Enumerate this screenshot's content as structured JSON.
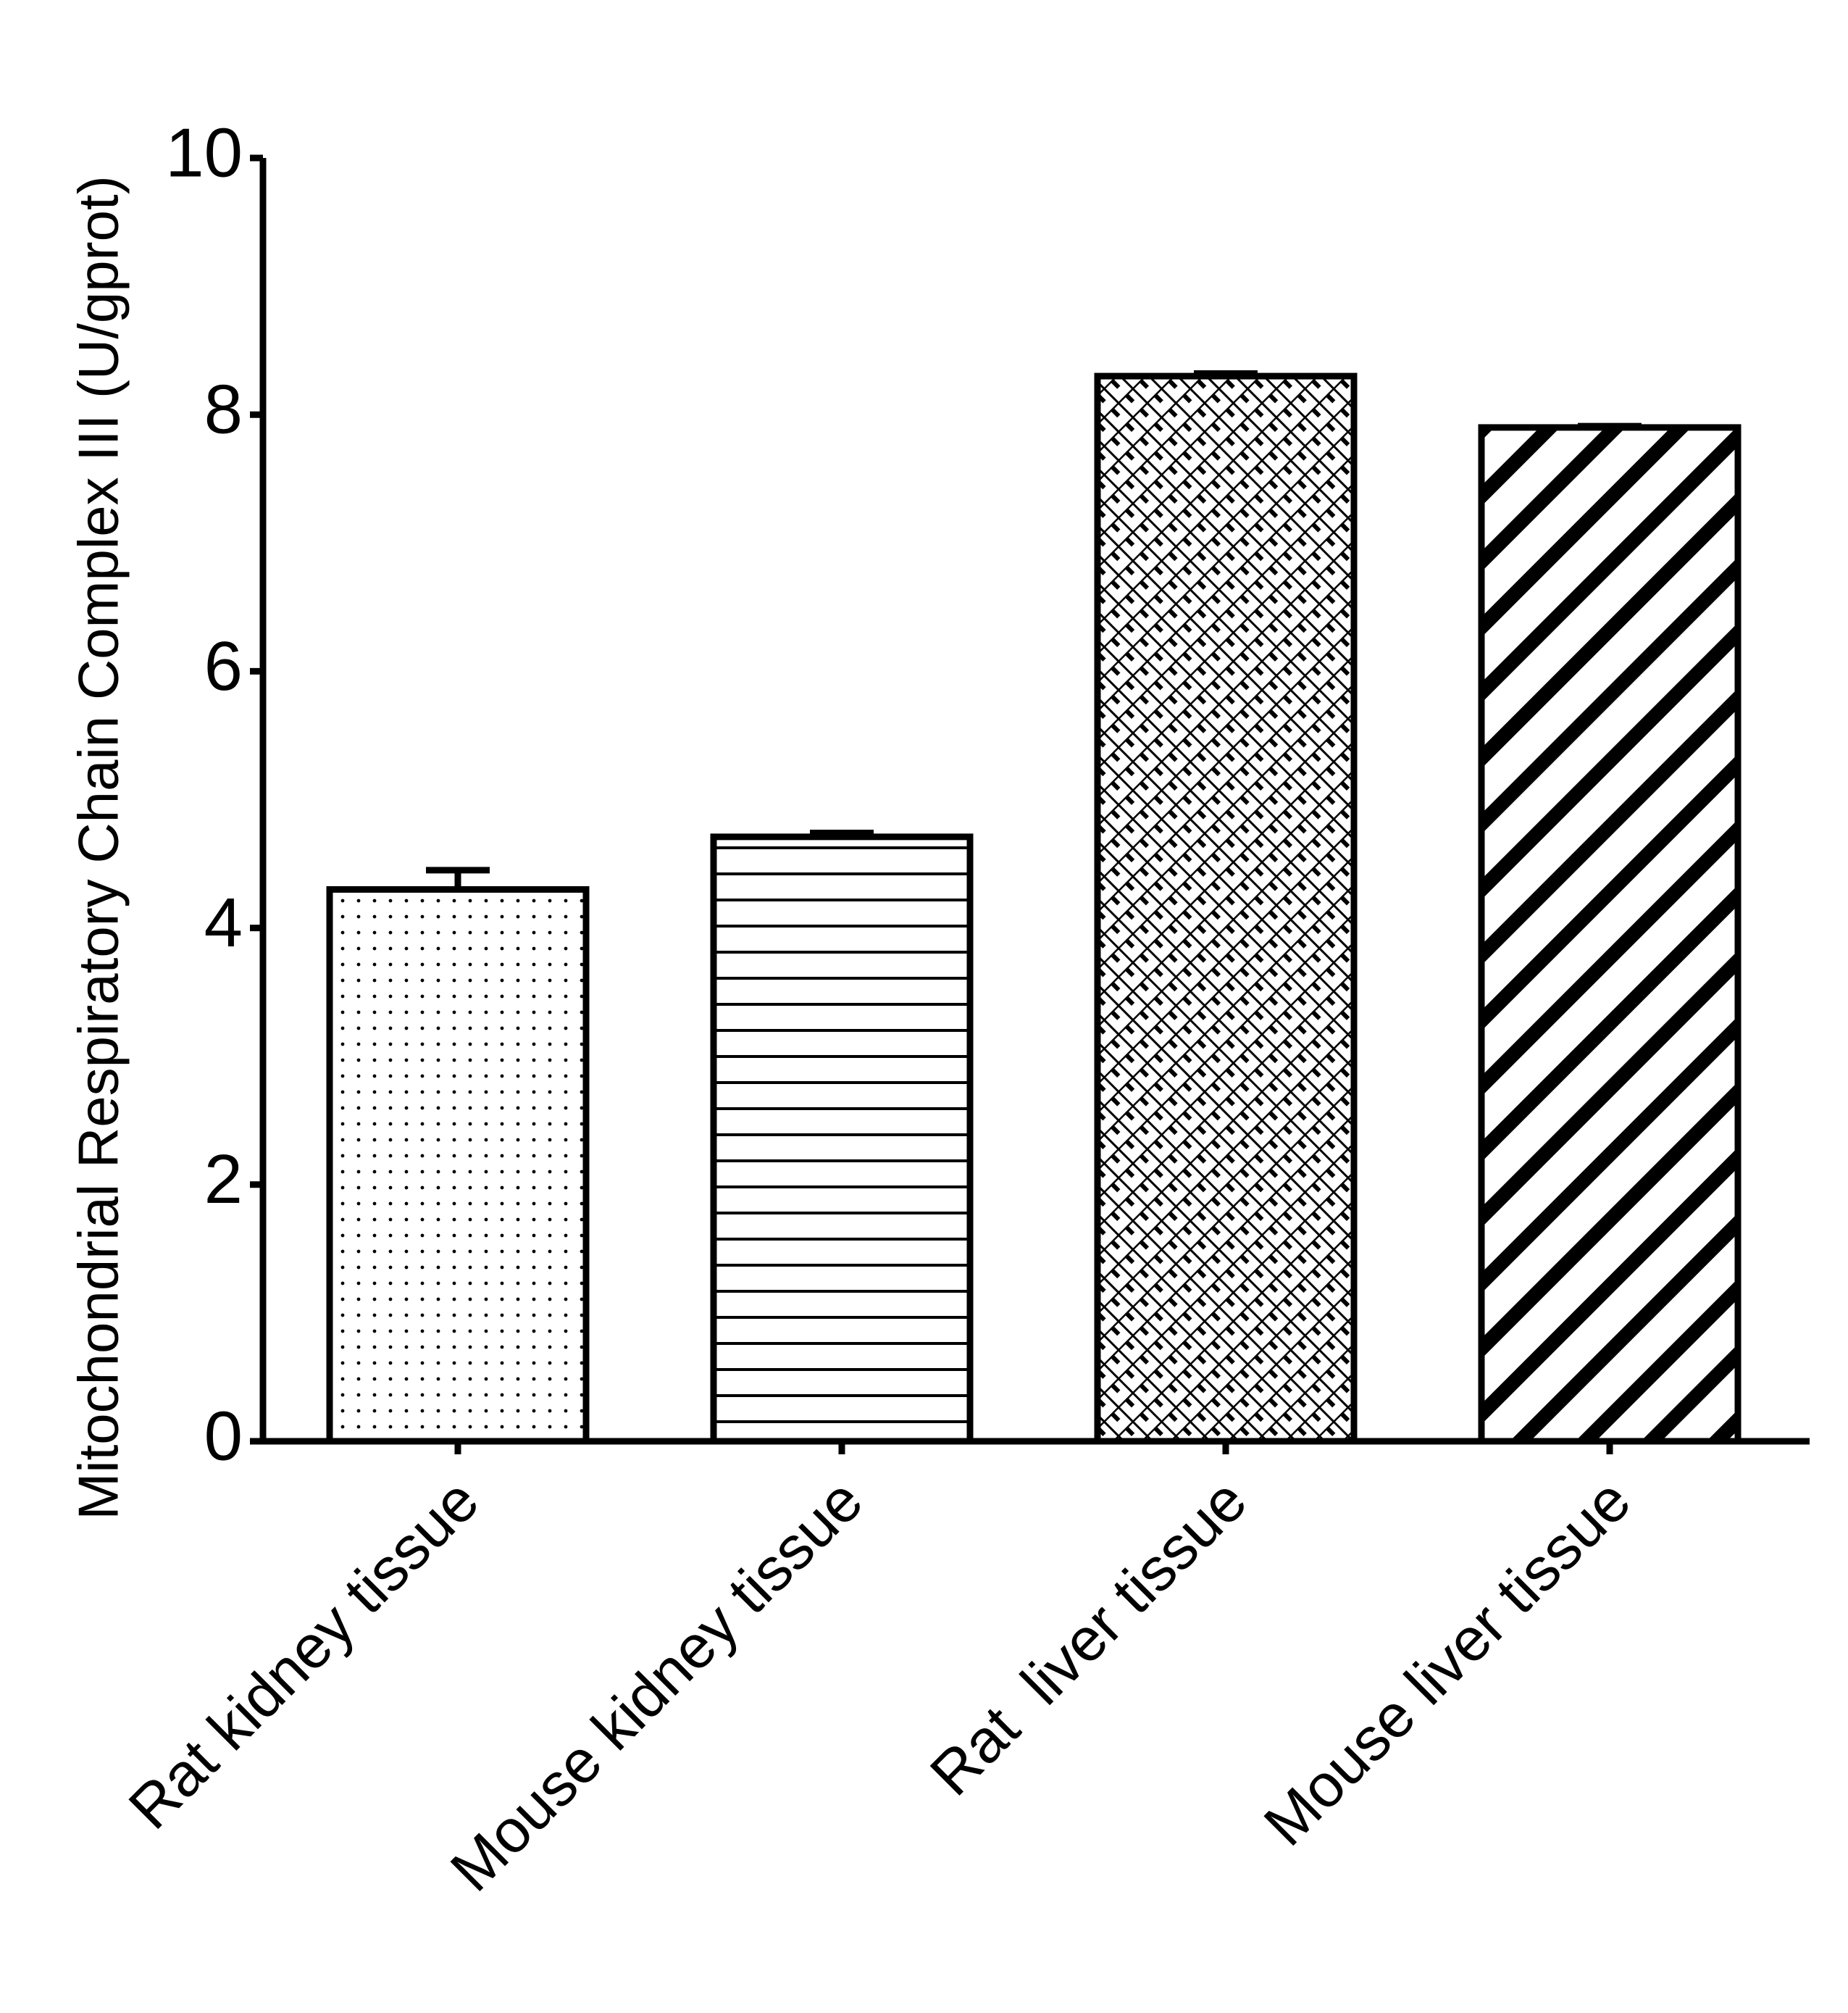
{
  "chart_data": {
    "type": "bar",
    "y_label": "Mitochondrial Respiratory Chain Complex III (U/gprot)",
    "categories": [
      "Rat kidney tissue",
      "Mouse kidney tissue",
      "Rat  liver tissue",
      "Mouse liver tissue"
    ],
    "values": [
      4.3,
      4.71,
      8.3,
      7.9
    ],
    "errors": [
      0.15,
      0.03,
      0.02,
      0.01
    ],
    "color": "#000000",
    "ylim": [
      0,
      10
    ],
    "yticks": [
      0,
      2,
      4,
      6,
      8,
      10
    ],
    "grid": false
  }
}
